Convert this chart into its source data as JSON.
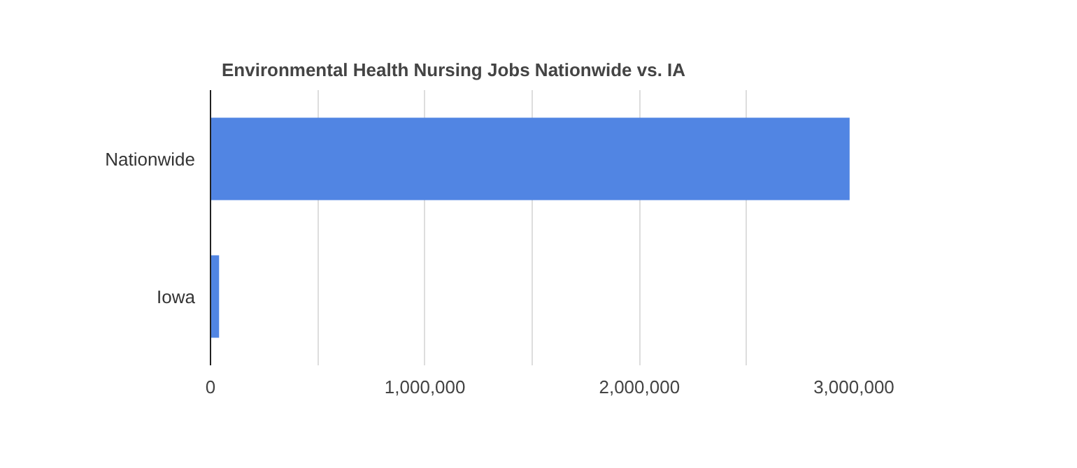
{
  "chart_data": {
    "type": "bar",
    "orientation": "horizontal",
    "title": "Environmental Health Nursing Jobs Nationwide vs. IA",
    "categories": [
      "Nationwide",
      "Iowa"
    ],
    "values": [
      2980000,
      40000
    ],
    "color": "#5185e3",
    "xlim": [
      0,
      3000000
    ],
    "xticks": [
      0,
      {
        "value": 500000,
        "label": null
      },
      {
        "value": 1000000,
        "label": "1,000,000"
      },
      {
        "value": 1500000,
        "label": null
      },
      {
        "value": 2000000,
        "label": "2,000,000"
      },
      {
        "value": 2500000,
        "label": null
      },
      {
        "value": 3000000,
        "label": "3,000,000"
      }
    ],
    "grid": "x"
  }
}
